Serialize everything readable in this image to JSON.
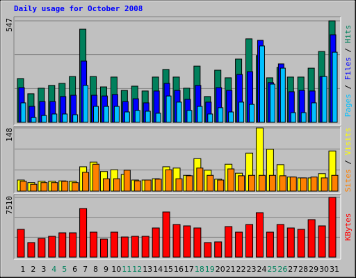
{
  "chart_data": [
    {
      "type": "bar",
      "title": "Daily usage for October 2008",
      "legend_separator": " / ",
      "ylim": [
        0,
        547
      ],
      "yticks": [
        547
      ],
      "series": [
        {
          "name": "Pages",
          "color": "#00c0ff",
          "values": [
            105,
            26,
            37,
            45,
            45,
            41,
            199,
            86,
            86,
            86,
            56,
            64,
            60,
            49,
            142,
            109,
            64,
            86,
            45,
            79,
            56,
            109,
            97,
            412,
            206,
            292,
            52,
            52,
            105,
            247,
            378
          ]
        },
        {
          "name": "Files",
          "color": "#0000ff",
          "values": [
            187,
            86,
            112,
            112,
            139,
            146,
            330,
            146,
            142,
            150,
            112,
            127,
            105,
            169,
            210,
            172,
            124,
            199,
            109,
            187,
            172,
            258,
            273,
            442,
            214,
            315,
            165,
            172,
            169,
            247,
            472
          ]
        },
        {
          "name": "Hits",
          "color": "#00805c",
          "values": [
            236,
            154,
            184,
            199,
            210,
            247,
            502,
            247,
            191,
            244,
            172,
            195,
            169,
            244,
            285,
            244,
            184,
            303,
            139,
            281,
            240,
            341,
            450,
            360,
            240,
            296,
            244,
            244,
            292,
            382,
            547
          ]
        }
      ]
    },
    {
      "type": "bar",
      "legend_separator": " / ",
      "ylim": [
        0,
        148
      ],
      "yticks": [
        148
      ],
      "series": [
        {
          "name": "Sites",
          "color": "#ff8000",
          "values": [
            23,
            16,
            20,
            20,
            23,
            20,
            44,
            63,
            29,
            29,
            49,
            24,
            26,
            28,
            50,
            29,
            36,
            54,
            37,
            26,
            52,
            36,
            37,
            37,
            37,
            36,
            33,
            31,
            33,
            31,
            37
          ]
        },
        {
          "name": "Visits",
          "color": "#ffff00",
          "values": [
            26,
            20,
            23,
            23,
            24,
            23,
            57,
            68,
            46,
            50,
            39,
            26,
            26,
            29,
            57,
            54,
            37,
            76,
            49,
            28,
            63,
            42,
            89,
            148,
            98,
            62,
            33,
            31,
            31,
            41,
            94
          ]
        }
      ]
    },
    {
      "type": "bar",
      "ylim": [
        0,
        7510
      ],
      "yticks": [
        7510
      ],
      "categories": [
        "1",
        "2",
        "3",
        "4",
        "5",
        "6",
        "7",
        "8",
        "9",
        "10",
        "11",
        "12",
        "13",
        "14",
        "15",
        "16",
        "17",
        "18",
        "19",
        "20",
        "21",
        "22",
        "23",
        "24",
        "25",
        "26",
        "27",
        "28",
        "29",
        "30",
        "31"
      ],
      "category_colors": [
        "#000000",
        "#000000",
        "#000000",
        "#00805c",
        "#00805c",
        "#000000",
        "#000000",
        "#000000",
        "#000000",
        "#000000",
        "#00805c",
        "#00805c",
        "#000000",
        "#000000",
        "#000000",
        "#000000",
        "#000000",
        "#00805c",
        "#00805c",
        "#000000",
        "#000000",
        "#000000",
        "#000000",
        "#000000",
        "#00805c",
        "#00805c",
        "#000000",
        "#000000",
        "#000000",
        "#000000",
        "#000000"
      ],
      "series": [
        {
          "name": "KBytes",
          "color": "#ff0000",
          "values": [
            3493,
            1834,
            2358,
            2620,
            3057,
            3057,
            6113,
            3144,
            2271,
            3144,
            2533,
            2620,
            2620,
            3668,
            5677,
            4105,
            3930,
            3668,
            1834,
            1921,
            3843,
            3144,
            4105,
            5590,
            3144,
            4105,
            3668,
            3493,
            4716,
            3930,
            7510
          ]
        }
      ]
    }
  ]
}
